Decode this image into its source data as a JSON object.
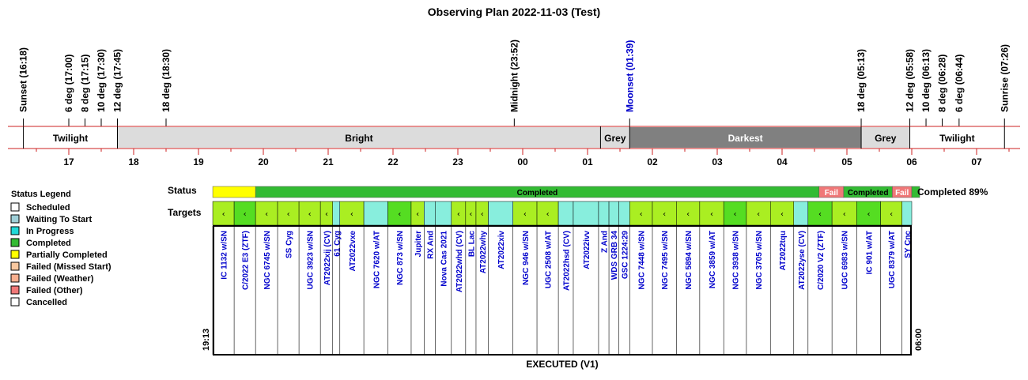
{
  "title": "Observing Plan 2022-11-03 (Test)",
  "footer": "EXECUTED (V1)",
  "completed_text": "Completed 89%",
  "row_labels": {
    "status": "Status",
    "targets": "Targets"
  },
  "start_time": "19:13",
  "end_time": "06:00",
  "legend": {
    "title": "Status Legend",
    "items": [
      {
        "label": "Scheduled",
        "color": "#ffffff"
      },
      {
        "label": "Waiting To Start",
        "color": "#9fcfd8"
      },
      {
        "label": "In Progress",
        "color": "#22d8d8"
      },
      {
        "label": "Completed",
        "color": "#33bb33"
      },
      {
        "label": "Partially Completed",
        "color": "#ffff00"
      },
      {
        "label": "Failed (Missed Start)",
        "color": "#f8c8a0"
      },
      {
        "label": "Failed (Weather)",
        "color": "#f8b090"
      },
      {
        "label": "Failed (Other)",
        "color": "#f07878"
      },
      {
        "label": "Cancelled",
        "color": "#ffffff"
      }
    ]
  },
  "chart_data": {
    "type": "timeline",
    "time_axis": {
      "start_hour": 16.32,
      "end_hour": 31.55,
      "ticks": [
        "17",
        "18",
        "19",
        "20",
        "21",
        "22",
        "23",
        "00",
        "01",
        "02",
        "03",
        "04",
        "05",
        "06",
        "07"
      ]
    },
    "events": [
      {
        "label": "Sunset (16:18)",
        "time": 16.3,
        "color": "#000000"
      },
      {
        "label": "6 deg (17:00)",
        "time": 17.0,
        "color": "#000000"
      },
      {
        "label": "8 deg (17:15)",
        "time": 17.25,
        "color": "#000000"
      },
      {
        "label": "10 deg (17:30)",
        "time": 17.5,
        "color": "#000000"
      },
      {
        "label": "12 deg (17:45)",
        "time": 17.75,
        "color": "#000000"
      },
      {
        "label": "18 deg (18:30)",
        "time": 18.5,
        "color": "#000000"
      },
      {
        "label": "Midnight (23:52)",
        "time": 23.87,
        "color": "#000000"
      },
      {
        "label": "Moonset (01:39)",
        "time": 25.65,
        "color": "#0000cc"
      },
      {
        "label": "18 deg (05:13)",
        "time": 29.22,
        "color": "#000000"
      },
      {
        "label": "12 deg (05:58)",
        "time": 29.97,
        "color": "#000000"
      },
      {
        "label": "10 deg (06:13)",
        "time": 30.22,
        "color": "#000000"
      },
      {
        "label": "8 deg (06:28)",
        "time": 30.47,
        "color": "#000000"
      },
      {
        "label": "6 deg (06:44)",
        "time": 30.73,
        "color": "#000000"
      },
      {
        "label": "Sunrise (07:26)",
        "time": 31.43,
        "color": "#000000"
      }
    ],
    "phases": [
      {
        "label": "Twilight",
        "start": 16.3,
        "end": 17.75,
        "color": "#ffffff",
        "text_color": "#000000"
      },
      {
        "label": "Bright",
        "start": 17.75,
        "end": 25.2,
        "color": "#dcdcdc",
        "text_color": "#000000"
      },
      {
        "label": "Grey",
        "start": 25.2,
        "end": 25.65,
        "color": "#dcdcdc",
        "text_color": "#000000"
      },
      {
        "label": "Darkest",
        "start": 25.65,
        "end": 29.22,
        "color": "#808080",
        "text_color": "#ffffff"
      },
      {
        "label": "Grey",
        "start": 29.22,
        "end": 29.97,
        "color": "#dcdcdc",
        "text_color": "#000000"
      },
      {
        "label": "Twilight",
        "start": 29.97,
        "end": 31.43,
        "color": "#ffffff",
        "text_color": "#000000"
      }
    ],
    "status_segments": [
      {
        "label": "",
        "start": 19.22,
        "end": 19.88,
        "color": "#ffff00"
      },
      {
        "label": "Completed",
        "start": 19.88,
        "end": 28.57,
        "color": "#33bb33"
      },
      {
        "label": "Fail",
        "start": 28.57,
        "end": 28.95,
        "color": "#f07878"
      },
      {
        "label": "Completed",
        "start": 28.95,
        "end": 29.7,
        "color": "#33bb33"
      },
      {
        "label": "Fail",
        "start": 29.7,
        "end": 30.0,
        "color": "#f07878"
      },
      {
        "label": "",
        "start": 30.0,
        "end": 30.0,
        "color": "#33bb33"
      }
    ],
    "targets": [
      {
        "name": "IC 1132 w/SN",
        "start": 19.22,
        "end": 19.55,
        "color": "#aaee22",
        "marker": "‹"
      },
      {
        "name": "C/2022 E3 (ZTF)",
        "start": 19.55,
        "end": 19.88,
        "color": "#55dd22",
        "marker": "‹"
      },
      {
        "name": "NGC 6745 w/SN",
        "start": 19.88,
        "end": 20.22,
        "color": "#aaee22",
        "marker": "‹"
      },
      {
        "name": "SS Cyg",
        "start": 20.22,
        "end": 20.55,
        "color": "#aaee22",
        "marker": "‹"
      },
      {
        "name": "UGC 3923 w/SN",
        "start": 20.55,
        "end": 20.88,
        "color": "#aaee22",
        "marker": "‹"
      },
      {
        "name": "AT2022xij (CV)",
        "start": 20.88,
        "end": 21.07,
        "color": "#aaee22",
        "marker": "‹"
      },
      {
        "name": "61 Cyg",
        "start": 21.07,
        "end": 21.18,
        "color": "#88eedd",
        "marker": ""
      },
      {
        "name": "AT2022vxe",
        "start": 21.18,
        "end": 21.55,
        "color": "#aaee22",
        "marker": "‹"
      },
      {
        "name": "NGC 7620 w/AT",
        "start": 21.55,
        "end": 21.92,
        "color": "#88eedd",
        "marker": ""
      },
      {
        "name": "NGC 873 w/SN",
        "start": 21.92,
        "end": 22.28,
        "color": "#55dd22",
        "marker": "‹"
      },
      {
        "name": "Jupiter",
        "start": 22.28,
        "end": 22.48,
        "color": "#aaee22",
        "marker": "‹"
      },
      {
        "name": "RX And",
        "start": 22.48,
        "end": 22.65,
        "color": "#88eedd",
        "marker": ""
      },
      {
        "name": "Nova Cas 2021",
        "start": 22.65,
        "end": 22.9,
        "color": "#88eedd",
        "marker": ""
      },
      {
        "name": "AT2022whd (CV)",
        "start": 22.9,
        "end": 23.12,
        "color": "#aaee22",
        "marker": "‹"
      },
      {
        "name": "BL Lac",
        "start": 23.12,
        "end": 23.28,
        "color": "#aaee22",
        "marker": "‹"
      },
      {
        "name": "AT2022why",
        "start": 23.28,
        "end": 23.47,
        "color": "#aaee22",
        "marker": "‹"
      },
      {
        "name": "AT2022xiv",
        "start": 23.47,
        "end": 23.85,
        "color": "#88eedd",
        "marker": ""
      },
      {
        "name": "NGC 946 w/SN",
        "start": 23.85,
        "end": 24.22,
        "color": "#aaee22",
        "marker": "‹"
      },
      {
        "name": "UGC 2508 w/AT",
        "start": 24.22,
        "end": 24.55,
        "color": "#aaee22",
        "marker": "‹"
      },
      {
        "name": "AT2022hsd (CV)",
        "start": 24.55,
        "end": 24.78,
        "color": "#88eedd",
        "marker": ""
      },
      {
        "name": "AT2022ivv",
        "start": 24.78,
        "end": 25.17,
        "color": "#88eedd",
        "marker": ""
      },
      {
        "name": "Z And",
        "start": 25.17,
        "end": 25.33,
        "color": "#88eedd",
        "marker": ""
      },
      {
        "name": "WDS GRB 34",
        "start": 25.33,
        "end": 25.48,
        "color": "#88eedd",
        "marker": ""
      },
      {
        "name": "GSC 1224:29",
        "start": 25.48,
        "end": 25.65,
        "color": "#88eedd",
        "marker": ""
      },
      {
        "name": "NGC 7448 w/SN",
        "start": 25.65,
        "end": 26.0,
        "color": "#aaee22",
        "marker": "‹"
      },
      {
        "name": "NGC 7495 w/SN",
        "start": 26.0,
        "end": 26.37,
        "color": "#aaee22",
        "marker": "‹"
      },
      {
        "name": "NGC 5894 w/SN",
        "start": 26.37,
        "end": 26.73,
        "color": "#aaee22",
        "marker": "‹"
      },
      {
        "name": "NGC 3859 w/AT",
        "start": 26.73,
        "end": 27.1,
        "color": "#aaee22",
        "marker": "‹"
      },
      {
        "name": "NGC 3938 w/SN",
        "start": 27.1,
        "end": 27.45,
        "color": "#55dd22",
        "marker": "‹"
      },
      {
        "name": "NGC 3705 w/SN",
        "start": 27.45,
        "end": 27.82,
        "color": "#aaee22",
        "marker": "‹"
      },
      {
        "name": "AT2022tqu",
        "start": 27.82,
        "end": 28.18,
        "color": "#aaee22",
        "marker": "‹"
      },
      {
        "name": "AT2022yse (CV)",
        "start": 28.18,
        "end": 28.4,
        "color": "#88eedd",
        "marker": ""
      },
      {
        "name": "C/2020 V2 (ZTF)",
        "start": 28.4,
        "end": 28.77,
        "color": "#55dd22",
        "marker": "‹"
      },
      {
        "name": "UGC 6983 w/SN",
        "start": 28.77,
        "end": 29.15,
        "color": "#aaee22",
        "marker": "‹"
      },
      {
        "name": "IC 901 w/AT",
        "start": 29.15,
        "end": 29.52,
        "color": "#55dd22",
        "marker": "‹"
      },
      {
        "name": "UGC 8379 w/AT",
        "start": 29.52,
        "end": 29.85,
        "color": "#aaee22",
        "marker": "‹"
      },
      {
        "name": "SY Cnc",
        "start": 29.85,
        "end": 30.0,
        "color": "#88eedd",
        "marker": ""
      }
    ]
  }
}
